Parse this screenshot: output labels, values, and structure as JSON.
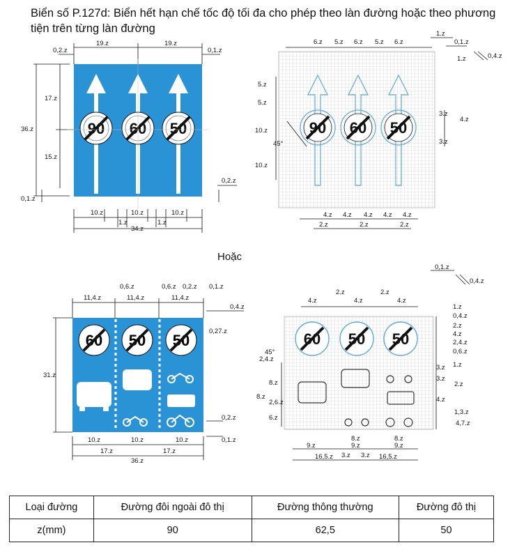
{
  "title": "Biển số P.127d: Biển hết hạn chế tốc độ tối đa cho phép theo làn đường hoặc theo phương tiện trên từng làn đường",
  "subhead": "Hoặc",
  "sign1": {
    "speeds": [
      "90",
      "60",
      "50"
    ],
    "dims": {
      "top_left": "0,2.z",
      "top_w1": "19.z",
      "top_w2": "19.z",
      "top_right": "0,1.z",
      "h_total": "36.z",
      "h_upper": "17.z",
      "h_lower": "15.z",
      "bottom_left": "0,1.z",
      "right_small": "0,2.z",
      "bottom_w1": "10.z",
      "bottom_w2": "10.z",
      "bottom_w3": "10.z",
      "gap1": "1.z",
      "gap2": "1.z",
      "bottom_total": "34.z"
    }
  },
  "grid1": {
    "dims": {
      "top": [
        "6.z",
        "5.z",
        "6.z",
        "5.z",
        "6.z"
      ],
      "right_top": "1.z",
      "right_mid": "1.z",
      "right_line": "0,1.z",
      "right_w": "0,4.z",
      "left": [
        "5.z",
        "5.z",
        "10.z",
        "10.z"
      ],
      "angle": "45°",
      "right_side": [
        "3.z",
        "4.z",
        "3.z"
      ],
      "bottom": [
        "4.z",
        "4.z",
        "4.z",
        "4.z",
        "4.z",
        "4.z"
      ],
      "bottom2": [
        "2.z",
        "2.z",
        "2.z"
      ]
    }
  },
  "sign2": {
    "speeds": [
      "60",
      "50",
      "50"
    ],
    "dims": {
      "top": [
        "11,4.z",
        "11,4.z",
        "11,4.z"
      ],
      "top_small": [
        "0,6.z",
        "0,6.z",
        "0,2.z",
        "0,1.z"
      ],
      "right": [
        "0,4.z",
        "0,27.z"
      ],
      "left_h": "31.z",
      "right_bottom": [
        "0,2.z",
        "0,1.z"
      ],
      "bottom": [
        "10.z",
        "10.z",
        "10.z"
      ],
      "bottom_mid": [
        "17.z",
        "17.z"
      ],
      "bottom_total": "36.z"
    }
  },
  "grid2": {
    "dims": {
      "corner": [
        "0,1.z",
        "0,4.z"
      ],
      "top": [
        "4.z",
        "2.z",
        "4.z",
        "2.z",
        "4.z"
      ],
      "right": [
        "1.z",
        "0,4.z",
        "2.z",
        "4.z",
        "2,4.z",
        "0,6.z",
        "1.z",
        "3.z",
        "2.z",
        "4.z",
        "1,3.z",
        "4,7.z"
      ],
      "right_side": [
        "3.z"
      ],
      "left": [
        "45°",
        "2,4.z",
        "8.z",
        "8.z",
        "2,6.z",
        "6.z"
      ],
      "bottom": [
        "8.z",
        "8.z",
        "9.z",
        "9.z",
        "9.z",
        "3.z",
        "3.z",
        "16,5.z",
        "16,5.z"
      ]
    }
  },
  "table": {
    "headers": [
      "Loại đường",
      "Đường đôi ngoài đô thị",
      "Đường thông thường",
      "Đường đô thị"
    ],
    "row": [
      "z(mm)",
      "90",
      "62,5",
      "50"
    ]
  },
  "colors": {
    "sign_blue": "#2a93d5",
    "grid_line": "#c8c8c8",
    "outline_blue": "#5aa9dd"
  }
}
